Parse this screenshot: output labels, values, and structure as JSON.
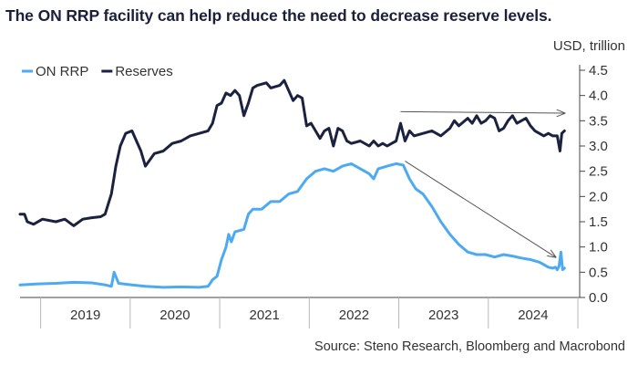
{
  "title": "The ON RRP facility can help reduce the need to decrease reserve levels.",
  "unit_label": "USD, trillion",
  "source": "Source: Steno Research, Bloomberg and Macrobond",
  "colors": {
    "on_rrp": "#4daaf0",
    "reserves": "#1b2240",
    "arrow": "#555555",
    "axis": "#444444"
  },
  "chart_data": {
    "type": "line",
    "xlim": [
      2018.7,
      2024.95
    ],
    "ylim": [
      0,
      4.5
    ],
    "y_ticks": [
      "0.0",
      "0.5",
      "1.0",
      "1.5",
      "2.0",
      "2.5",
      "3.0",
      "3.5",
      "4.0",
      "4.5"
    ],
    "x_tick_labels": [
      "2019",
      "2020",
      "2021",
      "2022",
      "2023",
      "2024"
    ],
    "legend": "top-left",
    "grid": false,
    "series": [
      {
        "name": "ON RRP",
        "color": "#4daaf0",
        "points": [
          [
            2018.7,
            0.25
          ],
          [
            2018.9,
            0.27
          ],
          [
            2019.1,
            0.28
          ],
          [
            2019.3,
            0.3
          ],
          [
            2019.5,
            0.29
          ],
          [
            2019.65,
            0.25
          ],
          [
            2019.72,
            0.22
          ],
          [
            2019.75,
            0.5
          ],
          [
            2019.8,
            0.28
          ],
          [
            2019.95,
            0.25
          ],
          [
            2020.1,
            0.22
          ],
          [
            2020.3,
            0.2
          ],
          [
            2020.5,
            0.21
          ],
          [
            2020.7,
            0.2
          ],
          [
            2020.8,
            0.22
          ],
          [
            2020.85,
            0.35
          ],
          [
            2020.9,
            0.42
          ],
          [
            2020.95,
            0.75
          ],
          [
            2021.0,
            1.0
          ],
          [
            2021.03,
            1.25
          ],
          [
            2021.06,
            1.1
          ],
          [
            2021.1,
            1.3
          ],
          [
            2021.2,
            1.35
          ],
          [
            2021.25,
            1.65
          ],
          [
            2021.3,
            1.75
          ],
          [
            2021.4,
            1.75
          ],
          [
            2021.5,
            1.9
          ],
          [
            2021.6,
            1.9
          ],
          [
            2021.7,
            2.05
          ],
          [
            2021.8,
            2.1
          ],
          [
            2021.9,
            2.35
          ],
          [
            2022.0,
            2.5
          ],
          [
            2022.1,
            2.55
          ],
          [
            2022.2,
            2.5
          ],
          [
            2022.3,
            2.6
          ],
          [
            2022.4,
            2.65
          ],
          [
            2022.5,
            2.55
          ],
          [
            2022.6,
            2.45
          ],
          [
            2022.65,
            2.35
          ],
          [
            2022.7,
            2.55
          ],
          [
            2022.8,
            2.6
          ],
          [
            2022.9,
            2.65
          ],
          [
            2022.98,
            2.62
          ],
          [
            2023.05,
            2.35
          ],
          [
            2023.12,
            2.15
          ],
          [
            2023.2,
            2.05
          ],
          [
            2023.3,
            1.8
          ],
          [
            2023.4,
            1.5
          ],
          [
            2023.5,
            1.25
          ],
          [
            2023.6,
            1.05
          ],
          [
            2023.7,
            0.9
          ],
          [
            2023.8,
            0.85
          ],
          [
            2023.9,
            0.85
          ],
          [
            2024.0,
            0.8
          ],
          [
            2024.1,
            0.85
          ],
          [
            2024.2,
            0.82
          ],
          [
            2024.3,
            0.78
          ],
          [
            2024.4,
            0.75
          ],
          [
            2024.5,
            0.7
          ],
          [
            2024.55,
            0.65
          ],
          [
            2024.6,
            0.6
          ],
          [
            2024.65,
            0.58
          ],
          [
            2024.68,
            0.6
          ],
          [
            2024.7,
            0.55
          ],
          [
            2024.72,
            0.62
          ],
          [
            2024.74,
            0.9
          ],
          [
            2024.76,
            0.55
          ],
          [
            2024.78,
            0.58
          ]
        ]
      },
      {
        "name": "Reserves",
        "color": "#1b2240",
        "points": [
          [
            2018.7,
            1.65
          ],
          [
            2018.75,
            1.65
          ],
          [
            2018.78,
            1.5
          ],
          [
            2018.85,
            1.45
          ],
          [
            2018.95,
            1.55
          ],
          [
            2019.1,
            1.5
          ],
          [
            2019.2,
            1.55
          ],
          [
            2019.3,
            1.42
          ],
          [
            2019.4,
            1.55
          ],
          [
            2019.5,
            1.58
          ],
          [
            2019.6,
            1.6
          ],
          [
            2019.65,
            1.65
          ],
          [
            2019.72,
            2.05
          ],
          [
            2019.77,
            2.6
          ],
          [
            2019.82,
            3.0
          ],
          [
            2019.88,
            3.25
          ],
          [
            2019.95,
            3.3
          ],
          [
            2020.0,
            3.1
          ],
          [
            2020.05,
            2.9
          ],
          [
            2020.1,
            2.6
          ],
          [
            2020.2,
            2.85
          ],
          [
            2020.3,
            2.9
          ],
          [
            2020.4,
            3.05
          ],
          [
            2020.5,
            3.1
          ],
          [
            2020.6,
            3.2
          ],
          [
            2020.7,
            3.25
          ],
          [
            2020.8,
            3.3
          ],
          [
            2020.85,
            3.45
          ],
          [
            2020.9,
            3.8
          ],
          [
            2020.95,
            3.85
          ],
          [
            2021.0,
            4.05
          ],
          [
            2021.05,
            4.0
          ],
          [
            2021.1,
            4.1
          ],
          [
            2021.15,
            4.0
          ],
          [
            2021.2,
            3.6
          ],
          [
            2021.25,
            3.85
          ],
          [
            2021.3,
            4.15
          ],
          [
            2021.35,
            4.2
          ],
          [
            2021.45,
            4.25
          ],
          [
            2021.5,
            4.15
          ],
          [
            2021.6,
            4.2
          ],
          [
            2021.65,
            4.3
          ],
          [
            2021.7,
            4.1
          ],
          [
            2021.75,
            3.9
          ],
          [
            2021.8,
            4.0
          ],
          [
            2021.85,
            3.95
          ],
          [
            2021.9,
            3.4
          ],
          [
            2021.95,
            3.45
          ],
          [
            2022.0,
            3.3
          ],
          [
            2022.05,
            3.15
          ],
          [
            2022.1,
            3.3
          ],
          [
            2022.15,
            3.35
          ],
          [
            2022.2,
            3.0
          ],
          [
            2022.25,
            3.35
          ],
          [
            2022.3,
            3.3
          ],
          [
            2022.35,
            3.1
          ],
          [
            2022.4,
            3.05
          ],
          [
            2022.5,
            3.1
          ],
          [
            2022.6,
            3.0
          ],
          [
            2022.65,
            3.1
          ],
          [
            2022.7,
            3.0
          ],
          [
            2022.75,
            3.05
          ],
          [
            2022.8,
            3.0
          ],
          [
            2022.85,
            3.05
          ],
          [
            2022.9,
            3.1
          ],
          [
            2022.95,
            3.45
          ],
          [
            2023.0,
            3.1
          ],
          [
            2023.05,
            3.3
          ],
          [
            2023.1,
            3.2
          ],
          [
            2023.2,
            3.25
          ],
          [
            2023.3,
            3.3
          ],
          [
            2023.4,
            3.2
          ],
          [
            2023.5,
            3.35
          ],
          [
            2023.55,
            3.5
          ],
          [
            2023.6,
            3.4
          ],
          [
            2023.7,
            3.55
          ],
          [
            2023.75,
            3.45
          ],
          [
            2023.8,
            3.6
          ],
          [
            2023.85,
            3.45
          ],
          [
            2023.9,
            3.5
          ],
          [
            2023.95,
            3.6
          ],
          [
            2024.0,
            3.55
          ],
          [
            2024.05,
            3.3
          ],
          [
            2024.1,
            3.35
          ],
          [
            2024.15,
            3.5
          ],
          [
            2024.2,
            3.6
          ],
          [
            2024.25,
            3.45
          ],
          [
            2024.3,
            3.5
          ],
          [
            2024.35,
            3.55
          ],
          [
            2024.4,
            3.4
          ],
          [
            2024.45,
            3.3
          ],
          [
            2024.5,
            3.25
          ],
          [
            2024.55,
            3.2
          ],
          [
            2024.6,
            3.25
          ],
          [
            2024.65,
            3.2
          ],
          [
            2024.7,
            3.2
          ],
          [
            2024.73,
            2.9
          ],
          [
            2024.75,
            3.25
          ],
          [
            2024.78,
            3.3
          ]
        ]
      }
    ],
    "annotations": [
      {
        "type": "arrow",
        "from": [
          2022.95,
          3.68
        ],
        "to": [
          2024.78,
          3.65
        ]
      },
      {
        "type": "arrow",
        "from": [
          2023.0,
          2.7
        ],
        "to": [
          2024.68,
          0.8
        ]
      }
    ]
  }
}
